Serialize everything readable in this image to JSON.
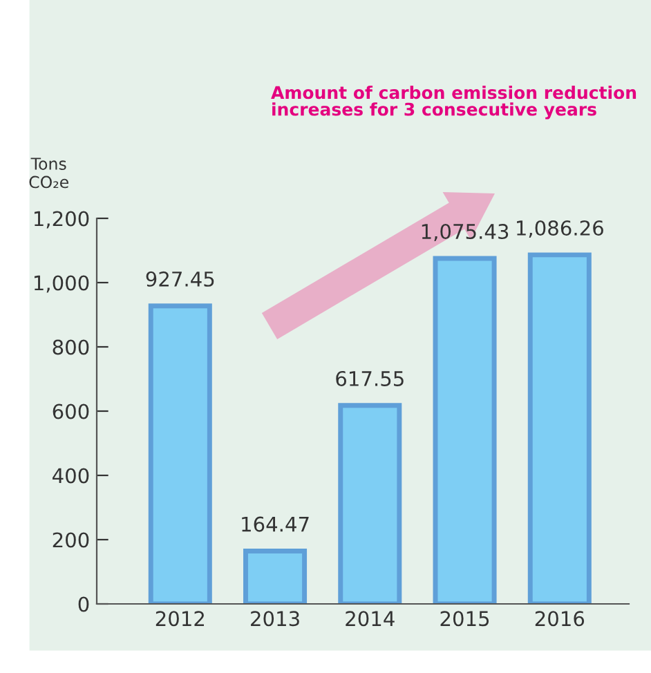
{
  "chart_data": {
    "type": "bar",
    "title": "Amount of carbon emission reduction\nincreases for 3 consecutive years",
    "ylabel": "Tons\nCO₂e",
    "categories": [
      "2012",
      "2013",
      "2014",
      "2015",
      "2016"
    ],
    "values": [
      927.45,
      164.47,
      617.55,
      1075.43,
      1086.26
    ],
    "color": "#7ecef4",
    "value_labels": [
      "927.45",
      "164.47",
      "617.55",
      "1,075.43",
      "1,086.26"
    ],
    "ylim": [
      0,
      1200
    ],
    "yticks": [
      {
        "value": 0,
        "label": "0"
      },
      {
        "value": 200,
        "label": "200"
      },
      {
        "value": 400,
        "label": "400"
      },
      {
        "value": 600,
        "label": "600"
      },
      {
        "value": 800,
        "label": "800"
      },
      {
        "value": 1000,
        "label": "1,000"
      },
      {
        "value": 1200,
        "label": "1,200"
      }
    ],
    "grid": false
  }
}
